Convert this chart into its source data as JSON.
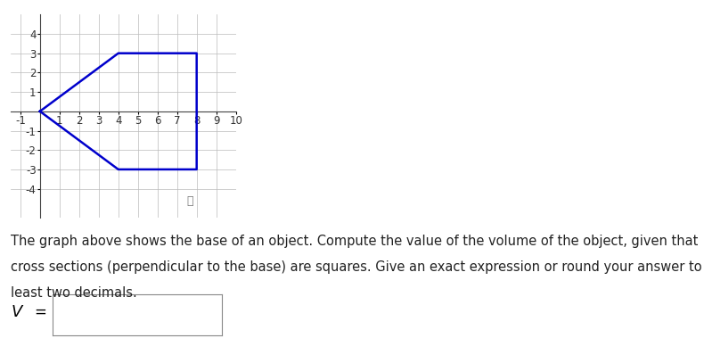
{
  "shape_vertices_x": [
    0,
    4,
    8,
    8,
    4,
    0
  ],
  "shape_vertices_y": [
    0,
    3,
    3,
    -3,
    -3,
    0
  ],
  "shape_color": "#0000CC",
  "shape_linewidth": 1.8,
  "xlim": [
    -1.5,
    10.0
  ],
  "ylim": [
    -5.5,
    5.0
  ],
  "xticks": [
    -1,
    1,
    2,
    3,
    4,
    5,
    6,
    7,
    8,
    9,
    10
  ],
  "yticks": [
    -4,
    -3,
    -2,
    -1,
    1,
    2,
    3,
    4
  ],
  "grid_color": "#bbbbbb",
  "grid_linewidth": 0.5,
  "axis_color": "#444444",
  "text_main_line1": "The graph above shows the base of an object. Compute the value of the volume of the object, given that",
  "text_main_line2": "cross sections (perpendicular to the base) are squares. Give an exact expression or round your answer to at",
  "text_main_line3": "least two decimals.",
  "fig_width": 7.9,
  "fig_height": 4.07,
  "font_size_text": 10.5,
  "font_size_axis": 8.5
}
